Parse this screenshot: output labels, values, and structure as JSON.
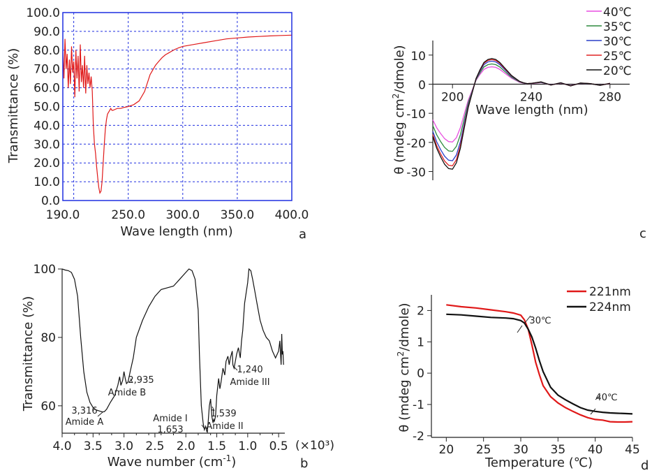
{
  "chart_data": [
    {
      "panel": "a",
      "type": "line",
      "xlabel": "Wave length (nm)",
      "ylabel": "Transmittance (%)",
      "xlim": [
        190,
        400
      ],
      "ylim": [
        0,
        100
      ],
      "grid": "on (dashed, blue)",
      "frame_color": "#1f2fe0",
      "series_color": "#e01919",
      "xticks": [
        {
          "v": 190,
          "t": "190.0"
        },
        {
          "v": 250,
          "t": "250.0"
        },
        {
          "v": 300,
          "t": "300.0"
        },
        {
          "v": 350,
          "t": "350.0"
        },
        {
          "v": 400,
          "t": "400.0"
        }
      ],
      "xgrid": [
        200,
        250,
        300,
        350
      ],
      "yticks": [
        {
          "v": 0,
          "t": "0.0"
        },
        {
          "v": 10,
          "t": "10.0"
        },
        {
          "v": 20,
          "t": "20.0"
        },
        {
          "v": 30,
          "t": "30.0"
        },
        {
          "v": 40,
          "t": "40.0"
        },
        {
          "v": 50,
          "t": "50.0"
        },
        {
          "v": 60,
          "t": "60.0"
        },
        {
          "v": 70,
          "t": "70.0"
        },
        {
          "v": 80,
          "t": "80.0"
        },
        {
          "v": 90,
          "t": "90.0"
        },
        {
          "v": 100,
          "t": "100.0"
        }
      ],
      "series": [
        {
          "x": [
            190,
            191,
            192,
            193,
            194,
            195,
            196,
            197,
            198,
            199,
            200,
            201,
            202,
            203,
            204,
            205,
            206,
            207,
            208,
            209,
            210,
            211,
            212,
            213,
            214,
            215,
            216,
            217,
            218,
            219,
            220,
            221,
            222,
            223,
            224,
            225,
            226,
            227,
            228,
            229,
            230,
            231,
            232,
            233,
            234,
            235,
            236,
            238,
            240,
            243,
            246,
            250,
            255,
            260,
            265,
            270,
            275,
            278,
            281,
            284,
            287,
            290,
            293,
            296,
            300,
            310,
            320,
            330,
            340,
            350,
            360,
            370,
            380,
            390,
            400
          ],
          "y": [
            80,
            65,
            86,
            70,
            78,
            60,
            75,
            62,
            82,
            68,
            74,
            55,
            80,
            65,
            77,
            58,
            83,
            63,
            72,
            60,
            77,
            57,
            72,
            62,
            68,
            60,
            66,
            58,
            40,
            30,
            25,
            18,
            12,
            7,
            4,
            5,
            10,
            20,
            30,
            38,
            43,
            46,
            47,
            48,
            49,
            48,
            48,
            48.5,
            49,
            49,
            49.5,
            50,
            51,
            53,
            58,
            67,
            72,
            74,
            76,
            77.5,
            78.5,
            79.5,
            80.5,
            81.2,
            82,
            83,
            84,
            85,
            86,
            86.5,
            87,
            87.3,
            87.6,
            87.8,
            88
          ]
        }
      ]
    },
    {
      "panel": "b",
      "type": "line",
      "xlabel": "Wave number (cm-1)",
      "xunit": "(×10³)",
      "ylabel": "Transmittance (%)",
      "xlim": [
        4.0,
        0.4
      ],
      "ylim": [
        52,
        100
      ],
      "grid": "off",
      "xticks": [
        {
          "v": 4.0,
          "t": "4.0"
        },
        {
          "v": 3.5,
          "t": "3.5"
        },
        {
          "v": 3.0,
          "t": "3.0"
        },
        {
          "v": 2.5,
          "t": "2.5"
        },
        {
          "v": 2.0,
          "t": "2.0"
        },
        {
          "v": 1.5,
          "t": "1.5"
        },
        {
          "v": 1.0,
          "t": "1.0"
        },
        {
          "v": 0.5,
          "t": "0.5"
        }
      ],
      "xticks_minor": [
        3.8,
        3.6,
        3.4,
        3.2,
        2.8,
        2.6,
        2.4,
        2.2,
        1.8,
        1.6,
        1.4,
        1.2,
        0.8,
        0.6
      ],
      "yticks": [
        {
          "v": 60,
          "t": "60"
        },
        {
          "v": 80,
          "t": "80"
        },
        {
          "v": 100,
          "t": "100"
        }
      ],
      "series": [
        {
          "x": [
            4.0,
            3.95,
            3.9,
            3.85,
            3.8,
            3.75,
            3.7,
            3.65,
            3.6,
            3.55,
            3.5,
            3.45,
            3.4,
            3.35,
            3.316,
            3.28,
            3.22,
            3.15,
            3.1,
            3.07,
            3.05,
            3.02,
            3.0,
            2.98,
            2.96,
            2.935,
            2.9,
            2.85,
            2.8,
            2.7,
            2.6,
            2.5,
            2.4,
            2.3,
            2.2,
            2.1,
            2.0,
            1.95,
            1.9,
            1.85,
            1.8,
            1.78,
            1.75,
            1.72,
            1.7,
            1.68,
            1.66,
            1.653,
            1.64,
            1.62,
            1.6,
            1.58,
            1.56,
            1.55,
            1.539,
            1.52,
            1.5,
            1.47,
            1.45,
            1.43,
            1.4,
            1.37,
            1.35,
            1.32,
            1.3,
            1.28,
            1.25,
            1.24,
            1.22,
            1.2,
            1.18,
            1.15,
            1.12,
            1.1,
            1.08,
            1.05,
            1.0,
            0.98,
            0.95,
            0.92,
            0.9,
            0.88,
            0.85,
            0.8,
            0.75,
            0.7,
            0.65,
            0.6,
            0.55,
            0.5,
            0.48,
            0.46,
            0.45,
            0.44,
            0.43,
            0.42
          ],
          "y": [
            100,
            99.7,
            99.5,
            99,
            97,
            92,
            80,
            70,
            64,
            61,
            59.5,
            58.8,
            58.5,
            58.2,
            58.3,
            59,
            61,
            63,
            66,
            68.5,
            66,
            67.5,
            70,
            68,
            66.5,
            67,
            70,
            74,
            80,
            85,
            89,
            92,
            94,
            94.5,
            95,
            97,
            99,
            100,
            99.5,
            97,
            88,
            75,
            60,
            55,
            53,
            54,
            52.5,
            52.3,
            55,
            60,
            62,
            57,
            55,
            56,
            55.5,
            57,
            63,
            68,
            65,
            67,
            71,
            69,
            73,
            74.5,
            72,
            74,
            76,
            72,
            71,
            73,
            75,
            77,
            74,
            79,
            82,
            90,
            96,
            100,
            99.5,
            97,
            95,
            93,
            90,
            85,
            82,
            80,
            79,
            76,
            74,
            76,
            79,
            72,
            81,
            75,
            76,
            72
          ]
        }
      ],
      "annotations": [
        {
          "label": "3,316",
          "sub": "Amide A"
        },
        {
          "label": "2,935",
          "sub": "Amide B"
        },
        {
          "label": "Amide I",
          "sub": "1,653"
        },
        {
          "label": "1,539",
          "sub": "Amide II"
        },
        {
          "label": "1,240",
          "sub": "Amide III"
        }
      ]
    },
    {
      "panel": "c",
      "type": "line",
      "xlabel": "Wave length (nm)",
      "ylabel": "θ (mdeg cm²/dmole)",
      "xlim": [
        190,
        290
      ],
      "ylim": [
        -33,
        15
      ],
      "grid": "off",
      "legend": "top-right",
      "xticks": [
        {
          "v": 200,
          "t": "200"
        },
        {
          "v": 240,
          "t": "240"
        },
        {
          "v": 280,
          "t": "280"
        }
      ],
      "yticks": [
        {
          "v": 10,
          "t": "10"
        },
        {
          "v": 0,
          "t": "0"
        },
        {
          "v": -10,
          "t": "-10"
        },
        {
          "v": -20,
          "t": "-20"
        },
        {
          "v": -30,
          "t": "-30"
        }
      ],
      "x": [
        190,
        192,
        194,
        196,
        198,
        200,
        202,
        204,
        206,
        208,
        210,
        212,
        214,
        216,
        218,
        220,
        222,
        224,
        226,
        228,
        230,
        232,
        234,
        236,
        238,
        240,
        245,
        250,
        255,
        260,
        265,
        270,
        275,
        280
      ],
      "series": [
        {
          "name": "40℃",
          "color": "#e84fe0",
          "scale": 0.68
        },
        {
          "name": "35℃",
          "color": "#2e8a3e",
          "scale": 0.79
        },
        {
          "name": "30℃",
          "color": "#2a3ec8",
          "scale": 0.9
        },
        {
          "name": "25℃",
          "color": "#e02424",
          "scale": 0.96
        },
        {
          "name": "20℃",
          "color": "#111111",
          "scale": 1.0
        }
      ],
      "base_shape": [
        -18,
        -22,
        -25,
        -27.5,
        -29,
        -29.2,
        -27,
        -22,
        -15,
        -8,
        -3,
        2,
        5,
        7.5,
        8.5,
        8.8,
        8.5,
        7.5,
        6,
        4.5,
        3,
        2,
        1,
        0.5,
        0.2,
        0.3,
        0.8,
        -0.3,
        0.5,
        -0.6,
        0.4,
        0.2,
        -0.4,
        0.3
      ]
    },
    {
      "panel": "d",
      "type": "line",
      "xlabel": "Temperature (℃)",
      "ylabel": "θ (mdeg cm²/dmole)",
      "xlim": [
        18,
        45
      ],
      "ylim": [
        -2.05,
        2.5
      ],
      "grid": "off",
      "legend": "top-right",
      "xticks": [
        {
          "v": 20,
          "t": "20"
        },
        {
          "v": 25,
          "t": "25"
        },
        {
          "v": 30,
          "t": "30"
        },
        {
          "v": 35,
          "t": "35"
        },
        {
          "v": 40,
          "t": "40"
        },
        {
          "v": 45,
          "t": "45"
        }
      ],
      "yticks": [
        {
          "v": 2,
          "t": "2"
        },
        {
          "v": 1,
          "t": "1"
        },
        {
          "v": 0,
          "t": "0"
        },
        {
          "v": -1,
          "t": "-1"
        },
        {
          "v": -2,
          "t": "-2"
        }
      ],
      "series": [
        {
          "name": "221nm",
          "color": "#e01919",
          "x": [
            20,
            22,
            24,
            26,
            28,
            29,
            30,
            30.5,
            31,
            31.5,
            32,
            32.5,
            33,
            34,
            35,
            36,
            37,
            38,
            39,
            40,
            41,
            42,
            43,
            44,
            45
          ],
          "y": [
            2.18,
            2.12,
            2.08,
            2.02,
            1.96,
            1.92,
            1.85,
            1.7,
            1.4,
            0.9,
            0.35,
            -0.05,
            -0.4,
            -0.75,
            -0.95,
            -1.1,
            -1.22,
            -1.33,
            -1.42,
            -1.48,
            -1.5,
            -1.55,
            -1.56,
            -1.56,
            -1.55
          ]
        },
        {
          "name": "224nm",
          "color": "#111111",
          "x": [
            20,
            22,
            24,
            26,
            28,
            29,
            30,
            30.5,
            31,
            31.5,
            32,
            32.5,
            33,
            34,
            35,
            36,
            37,
            38,
            39,
            40,
            41,
            42,
            43,
            44,
            45
          ],
          "y": [
            1.88,
            1.86,
            1.82,
            1.78,
            1.76,
            1.74,
            1.68,
            1.6,
            1.4,
            1.15,
            0.8,
            0.4,
            0.05,
            -0.45,
            -0.7,
            -0.85,
            -0.98,
            -1.1,
            -1.18,
            -1.22,
            -1.25,
            -1.27,
            -1.28,
            -1.29,
            -1.3
          ]
        }
      ],
      "annotations": [
        {
          "label": "30℃"
        },
        {
          "label": "40℃"
        }
      ]
    }
  ],
  "panel_labels": {
    "a": "a",
    "b": "b",
    "c": "c",
    "d": "d"
  }
}
